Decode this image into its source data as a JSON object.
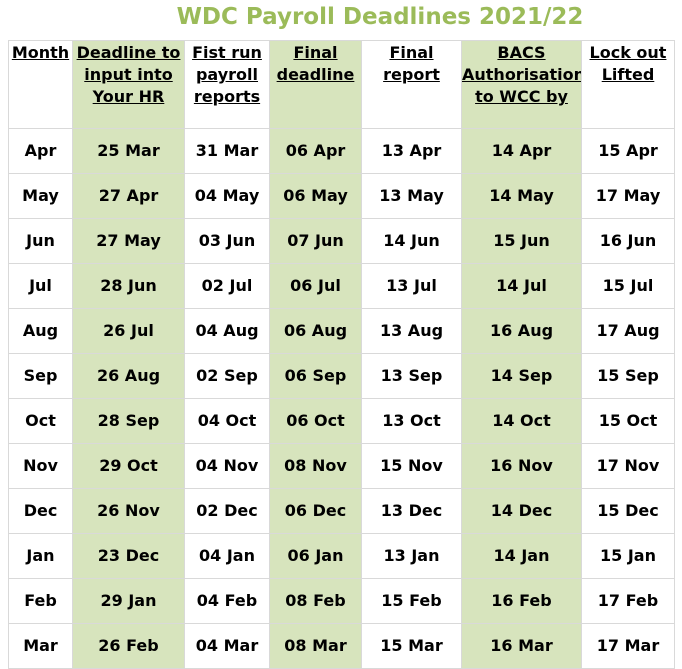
{
  "title": "WDC Payroll Deadlines 2021/22",
  "colors": {
    "title": "#9bbb59",
    "highlight_column": "#d7e4bd",
    "grid": "#d9d9d9"
  },
  "columns": [
    "Month",
    "Deadline to input into Your HR",
    "Fist run payroll reports",
    "Final deadline",
    "Final report",
    "BACS Authorisation to WCC by",
    "Lock out Lifted"
  ],
  "rows": [
    [
      "Apr",
      "25 Mar",
      "31 Mar",
      "06 Apr",
      "13 Apr",
      "14 Apr",
      "15 Apr"
    ],
    [
      "May",
      "27 Apr",
      "04 May",
      "06 May",
      "13 May",
      "14 May",
      "17 May"
    ],
    [
      "Jun",
      "27 May",
      "03 Jun",
      "07 Jun",
      "14 Jun",
      "15 Jun",
      "16 Jun"
    ],
    [
      "Jul",
      "28 Jun",
      "02 Jul",
      "06 Jul",
      "13 Jul",
      "14 Jul",
      "15 Jul"
    ],
    [
      "Aug",
      "26 Jul",
      "04 Aug",
      "06 Aug",
      "13 Aug",
      "16 Aug",
      "17 Aug"
    ],
    [
      "Sep",
      "26 Aug",
      "02 Sep",
      "06 Sep",
      "13 Sep",
      "14 Sep",
      "15 Sep"
    ],
    [
      "Oct",
      "28 Sep",
      "04 Oct",
      "06 Oct",
      "13 Oct",
      "14 Oct",
      "15 Oct"
    ],
    [
      "Nov",
      "29 Oct",
      "04 Nov",
      "08 Nov",
      "15 Nov",
      "16 Nov",
      "17 Nov"
    ],
    [
      "Dec",
      "26 Nov",
      "02 Dec",
      "06 Dec",
      "13 Dec",
      "14 Dec",
      "15 Dec"
    ],
    [
      "Jan",
      "23 Dec",
      "04 Jan",
      "06 Jan",
      "13 Jan",
      "14 Jan",
      "15 Jan"
    ],
    [
      "Feb",
      "29 Jan",
      "04 Feb",
      "08 Feb",
      "15 Feb",
      "16 Feb",
      "17 Feb"
    ],
    [
      "Mar",
      "26 Feb",
      "04 Mar",
      "08 Mar",
      "15 Mar",
      "16 Mar",
      "17 Mar"
    ]
  ]
}
